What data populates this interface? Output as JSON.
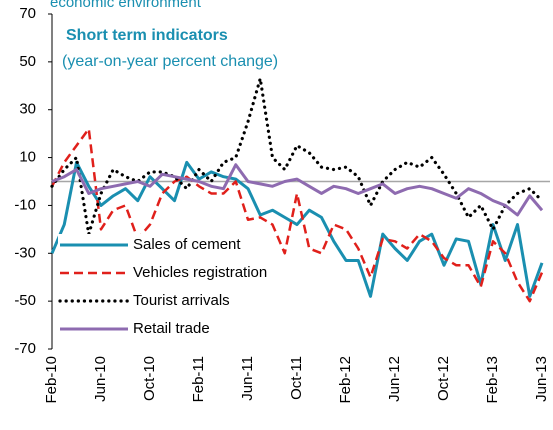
{
  "chart_data": {
    "type": "line",
    "title": "economic environment",
    "subtitle": "Short term indicators",
    "note": "(year-on-year percent change)",
    "categories": [
      "Feb-10",
      null,
      null,
      null,
      "Jun-10",
      null,
      null,
      null,
      "Oct-10",
      null,
      null,
      null,
      "Feb-11",
      null,
      null,
      null,
      "Jun-11",
      null,
      null,
      null,
      "Oct-11",
      null,
      null,
      null,
      "Feb-12",
      null,
      null,
      null,
      "Jun-12",
      null,
      null,
      null,
      "Oct-12",
      null,
      null,
      null,
      "Feb-13",
      null,
      null,
      null,
      "Jun-13"
    ],
    "series": [
      {
        "name": "Sales of cement",
        "color": "#1a8fb0",
        "values": [
          -30,
          -18,
          8,
          -2,
          -10,
          -6,
          -3,
          -8,
          2,
          -3,
          -8,
          8,
          1,
          4,
          2,
          1,
          -3,
          -14,
          -12,
          -15,
          -18,
          -12,
          -15,
          -25,
          -33,
          -33,
          -48,
          -22,
          -28,
          -33,
          -25,
          -22,
          -35,
          -24,
          -25,
          -43,
          -18,
          -33,
          -18,
          -48,
          -34
        ]
      },
      {
        "name": "Vehicles registration",
        "color": "#e0201b",
        "values": [
          -2,
          8,
          15,
          22,
          -20,
          -12,
          -10,
          -24,
          -18,
          -5,
          0,
          2,
          -2,
          -5,
          -5,
          0,
          -16,
          -15,
          -18,
          -30,
          -5,
          -28,
          -30,
          -18,
          -20,
          -28,
          -40,
          -24,
          -25,
          -28,
          -22,
          -25,
          -32,
          -35,
          -35,
          -44,
          -25,
          -30,
          -42,
          -50,
          -38
        ]
      },
      {
        "name": "Tourist arrivals",
        "color": "#000000",
        "values": [
          -2,
          5,
          10,
          -22,
          -5,
          5,
          2,
          0,
          4,
          4,
          2,
          -3,
          5,
          0,
          8,
          10,
          25,
          43,
          10,
          5,
          15,
          12,
          6,
          5,
          6,
          2,
          -10,
          0,
          5,
          8,
          6,
          10,
          3,
          -5,
          -15,
          -10,
          -20,
          -10,
          -5,
          -3,
          -8
        ]
      },
      {
        "name": "Retail trade",
        "color": "#8e6bb0",
        "values": [
          0,
          2,
          5,
          -5,
          -3,
          -2,
          -1,
          0,
          -2,
          3,
          2,
          1,
          0,
          -2,
          -3,
          7,
          0,
          -1,
          -2,
          0,
          1,
          -2,
          -5,
          -2,
          -3,
          -5,
          -3,
          -1,
          -5,
          -3,
          -2,
          -3,
          -5,
          -7,
          -3,
          -5,
          -8,
          -10,
          -14,
          -6,
          -12
        ]
      }
    ],
    "ylim": [
      -70,
      70
    ],
    "yticks": [
      -70,
      -50,
      -30,
      -10,
      10,
      30,
      50,
      70
    ],
    "grid": false
  }
}
